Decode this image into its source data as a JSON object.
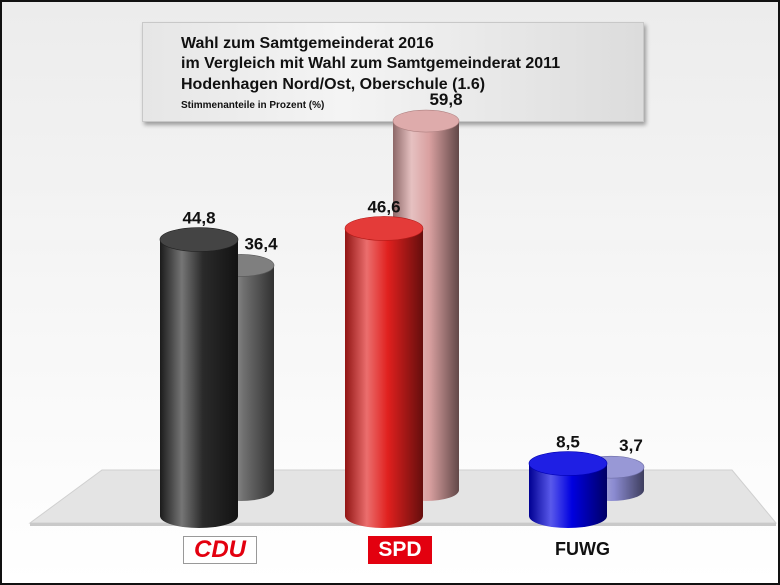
{
  "title": {
    "line1": "Wahl zum Samtgemeinderat 2016",
    "line2": "im Vergleich mit Wahl zum Samtgemeinderat 2011",
    "line3": "Hodenhagen Nord/Ost, Oberschule (1.6)",
    "subtitle": "Stimmenanteile in Prozent (%)"
  },
  "chart_data": {
    "type": "bar",
    "categories": [
      "CDU",
      "SPD",
      "FUWG"
    ],
    "series": [
      {
        "values": [
          44.8,
          46.6,
          8.5
        ]
      },
      {
        "values": [
          36.4,
          59.8,
          3.7
        ]
      }
    ],
    "data_labels": [
      [
        "44,8",
        "46,6",
        "8,5"
      ],
      [
        "36,4",
        "59,8",
        "3,7"
      ]
    ],
    "colors": {
      "2016": [
        "#2a2a2a",
        "#e0201e",
        "#0000e0"
      ],
      "2011": [
        "#6e6e6e",
        "#d9a0a0",
        "#8a8ad0"
      ]
    },
    "ylim": [
      0,
      100
    ],
    "legend": "none",
    "grid": false
  },
  "party_labels": {
    "cdu": "CDU",
    "spd": "SPD",
    "fuwg": "FUWG"
  }
}
